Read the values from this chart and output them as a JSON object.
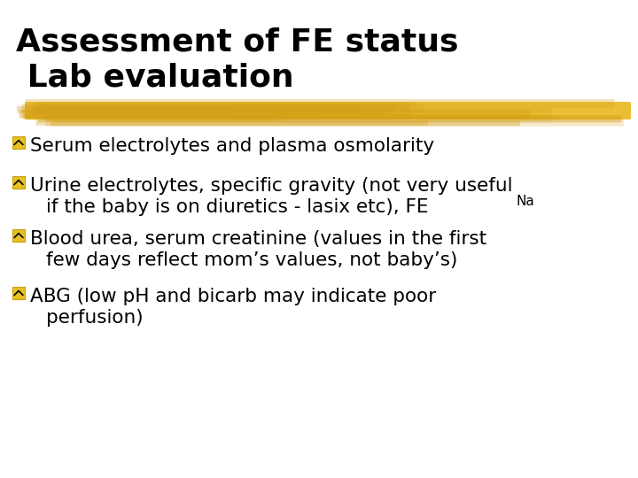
{
  "title_line1": "Assessment of FE status",
  "title_line2": " Lab evaluation",
  "title_color": "#000000",
  "title_fontsize": 26,
  "background_color": "#ffffff",
  "highlight_color": "#D4A017",
  "highlight_color2": "#E8B820",
  "bullet_color": "#E8C020",
  "bullet_border_color": "#C8A010",
  "text_color": "#000000",
  "text_fontsize": 15.5,
  "sub_fontsize": 11,
  "bullets": [
    {
      "main": "Serum electrolytes and plasma osmolarity",
      "continuation": null
    },
    {
      "main": "Urine electrolytes, specific gravity (not very useful",
      "continuation": "if the baby is on diuretics - lasix etc), FE"
    },
    {
      "main": "Blood urea, serum creatinine (values in the first",
      "continuation": "few days reflect mom’s values, not baby’s)"
    },
    {
      "main": "ABG (low pH and bicarb may indicate poor",
      "continuation": "perfusion)"
    }
  ]
}
